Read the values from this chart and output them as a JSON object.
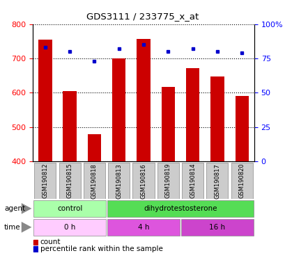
{
  "title": "GDS3111 / 233775_x_at",
  "samples": [
    "GSM190812",
    "GSM190815",
    "GSM190818",
    "GSM190813",
    "GSM190816",
    "GSM190819",
    "GSM190814",
    "GSM190817",
    "GSM190820"
  ],
  "bar_values": [
    755,
    605,
    480,
    700,
    757,
    617,
    672,
    648,
    591
  ],
  "percentile_values": [
    83,
    80,
    73,
    82,
    85,
    80,
    82,
    80,
    79
  ],
  "bar_color": "#cc0000",
  "dot_color": "#0000cc",
  "ylim_left": [
    400,
    800
  ],
  "ylim_right": [
    0,
    100
  ],
  "yticks_left": [
    400,
    500,
    600,
    700,
    800
  ],
  "yticks_right": [
    0,
    25,
    50,
    75,
    100
  ],
  "agent_groups": [
    {
      "label": "control",
      "start": 0,
      "end": 3,
      "color": "#aaffaa"
    },
    {
      "label": "dihydrotestosterone",
      "start": 3,
      "end": 9,
      "color": "#55dd55"
    }
  ],
  "time_groups": [
    {
      "label": "0 h",
      "start": 0,
      "end": 3,
      "color": "#ffccff"
    },
    {
      "label": "4 h",
      "start": 3,
      "end": 6,
      "color": "#dd55dd"
    },
    {
      "label": "16 h",
      "start": 6,
      "end": 9,
      "color": "#cc44cc"
    }
  ],
  "legend_count_label": "count",
  "legend_pct_label": "percentile rank within the sample",
  "agent_label": "agent",
  "time_label": "time",
  "grid_color": "#000000",
  "sample_box_color": "#cccccc",
  "background_color": "#ffffff"
}
